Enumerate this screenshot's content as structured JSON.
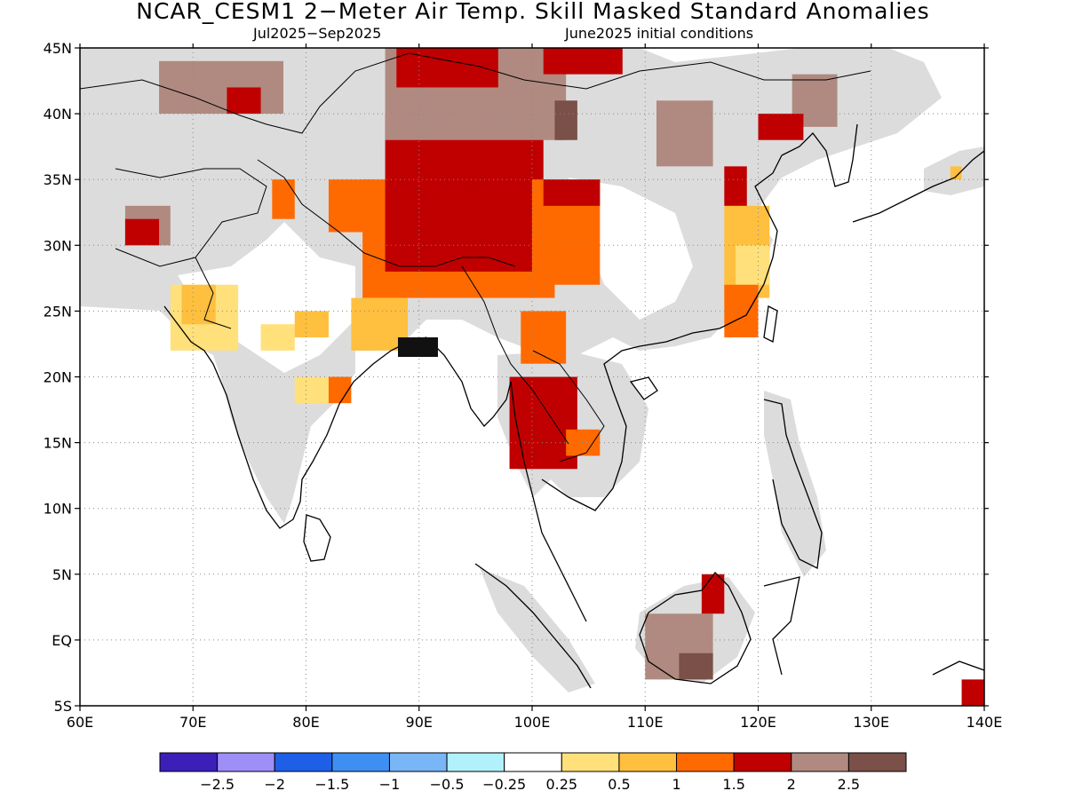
{
  "title": "NCAR_CESM1 2−Meter Air Temp. Skill Masked Standard Anomalies",
  "subtitle_left": "Jul2025−Sep2025",
  "subtitle_right": "June2025 initial conditions",
  "map": {
    "lon_range": [
      60,
      140
    ],
    "lat_range": [
      -5,
      45
    ],
    "lon_ticks": [
      {
        "v": 60,
        "label": "60E"
      },
      {
        "v": 70,
        "label": "70E"
      },
      {
        "v": 80,
        "label": "80E"
      },
      {
        "v": 90,
        "label": "90E"
      },
      {
        "v": 100,
        "label": "100E"
      },
      {
        "v": 110,
        "label": "110E"
      },
      {
        "v": 120,
        "label": "120E"
      },
      {
        "v": 130,
        "label": "130E"
      },
      {
        "v": 140,
        "label": "140E"
      }
    ],
    "lat_ticks": [
      {
        "v": 45,
        "label": "45N"
      },
      {
        "v": 40,
        "label": "40N"
      },
      {
        "v": 35,
        "label": "35N"
      },
      {
        "v": 30,
        "label": "30N"
      },
      {
        "v": 25,
        "label": "25N"
      },
      {
        "v": 20,
        "label": "20N"
      },
      {
        "v": 15,
        "label": "15N"
      },
      {
        "v": 10,
        "label": "10N"
      },
      {
        "v": 5,
        "label": "5N"
      },
      {
        "v": 0,
        "label": "EQ"
      },
      {
        "v": -5,
        "label": "5S"
      }
    ],
    "masked_color": "#dcdcdc",
    "anomaly_regions": [
      {
        "level": "1.5",
        "color": "#ff6a00",
        "lon": [
          85,
          102
        ],
        "lat": [
          26,
          35
        ]
      },
      {
        "level": "2",
        "color": "#c00000",
        "lon": [
          87,
          101
        ],
        "lat": [
          28,
          40
        ]
      },
      {
        "level": "2.5",
        "color": "#b08a80",
        "lon": [
          87,
          103
        ],
        "lat": [
          38,
          45
        ]
      },
      {
        "level": "2",
        "color": "#c00000",
        "lon": [
          88,
          97
        ],
        "lat": [
          42,
          45
        ]
      },
      {
        "level": "2",
        "color": "#c00000",
        "lon": [
          101,
          108
        ],
        "lat": [
          43,
          45
        ]
      },
      {
        "level": "1.5",
        "color": "#ff6a00",
        "lon": [
          100,
          106
        ],
        "lat": [
          27,
          35
        ]
      },
      {
        "level": "2",
        "color": "#c00000",
        "lon": [
          101,
          106
        ],
        "lat": [
          33,
          35
        ]
      },
      {
        "level": "2.5",
        "color": "#b08a80",
        "lon": [
          67,
          78
        ],
        "lat": [
          40,
          44
        ]
      },
      {
        "level": "2",
        "color": "#c00000",
        "lon": [
          73,
          76
        ],
        "lat": [
          40,
          42
        ]
      },
      {
        "level": "2.5",
        "color": "#b08a80",
        "lon": [
          64,
          68
        ],
        "lat": [
          30,
          33
        ]
      },
      {
        "level": "2",
        "color": "#c00000",
        "lon": [
          64,
          67
        ],
        "lat": [
          30,
          32
        ]
      },
      {
        "level": "1.5",
        "color": "#ff6a00",
        "lon": [
          77,
          79
        ],
        "lat": [
          32,
          35
        ]
      },
      {
        "level": "1.5",
        "color": "#ff6a00",
        "lon": [
          82,
          86
        ],
        "lat": [
          31,
          35
        ]
      },
      {
        "level": "0.5",
        "color": "#ffe07a",
        "lon": [
          68,
          74
        ],
        "lat": [
          22,
          27
        ]
      },
      {
        "level": "1",
        "color": "#ffbf3f",
        "lon": [
          69,
          72
        ],
        "lat": [
          24,
          27
        ]
      },
      {
        "level": "0.5",
        "color": "#ffe07a",
        "lon": [
          76,
          79
        ],
        "lat": [
          22,
          24
        ]
      },
      {
        "level": "1",
        "color": "#ffbf3f",
        "lon": [
          79,
          82
        ],
        "lat": [
          23,
          25
        ]
      },
      {
        "level": "1",
        "color": "#ffbf3f",
        "lon": [
          84,
          89
        ],
        "lat": [
          22,
          26
        ]
      },
      {
        "level": "0.5",
        "color": "#ffe07a",
        "lon": [
          79,
          83
        ],
        "lat": [
          18,
          20
        ]
      },
      {
        "level": "1.5",
        "color": "#ff6a00",
        "lon": [
          82,
          84
        ],
        "lat": [
          18,
          20
        ]
      },
      {
        "level": "2",
        "color": "#c00000",
        "lon": [
          98,
          104
        ],
        "lat": [
          13,
          20
        ]
      },
      {
        "level": "1.5",
        "color": "#ff6a00",
        "lon": [
          103,
          106
        ],
        "lat": [
          14,
          16
        ]
      },
      {
        "level": "1.5",
        "color": "#ff6a00",
        "lon": [
          99,
          103
        ],
        "lat": [
          21,
          25
        ]
      },
      {
        "level": "1",
        "color": "#ffbf3f",
        "lon": [
          117,
          121
        ],
        "lat": [
          26,
          33
        ]
      },
      {
        "level": "0.5",
        "color": "#ffe07a",
        "lon": [
          118,
          121
        ],
        "lat": [
          27,
          30
        ]
      },
      {
        "level": "1.5",
        "color": "#ff6a00",
        "lon": [
          117,
          120
        ],
        "lat": [
          23,
          27
        ]
      },
      {
        "level": "2",
        "color": "#c00000",
        "lon": [
          117,
          119
        ],
        "lat": [
          33,
          36
        ]
      },
      {
        "level": "2.5",
        "color": "#b08a80",
        "lon": [
          110,
          116
        ],
        "lat": [
          -3,
          2
        ]
      },
      {
        "level": "3",
        "color": "#7a5048",
        "lon": [
          113,
          116
        ],
        "lat": [
          -3,
          -1
        ]
      },
      {
        "level": "2",
        "color": "#c00000",
        "lon": [
          115,
          117
        ],
        "lat": [
          2,
          5
        ]
      },
      {
        "level": "2.5",
        "color": "#b08a80",
        "lon": [
          111,
          116
        ],
        "lat": [
          36,
          41
        ]
      },
      {
        "level": "2.5",
        "color": "#b08a80",
        "lon": [
          123,
          127
        ],
        "lat": [
          39,
          43
        ]
      },
      {
        "level": "2",
        "color": "#c00000",
        "lon": [
          120,
          124
        ],
        "lat": [
          38,
          40
        ]
      },
      {
        "level": "3",
        "color": "#7a5048",
        "lon": [
          102,
          104
        ],
        "lat": [
          38,
          41
        ]
      },
      {
        "level": "2",
        "color": "#c00000",
        "lon": [
          138,
          140
        ],
        "lat": [
          -5,
          -3
        ]
      },
      {
        "level": "1",
        "color": "#ffbf3f",
        "lon": [
          137,
          138
        ],
        "lat": [
          35,
          36
        ]
      }
    ]
  },
  "colorbar": {
    "colors": [
      "#3b1fb8",
      "#9d8ff7",
      "#1e5fe8",
      "#3f8ff2",
      "#79b6f5",
      "#b1f1fb",
      "#ffffff",
      "#ffe07a",
      "#ffbf3f",
      "#ff6a00",
      "#c00000",
      "#b08a80",
      "#7a5048"
    ],
    "labels": [
      "−2.5",
      "−2",
      "−1.5",
      "−1",
      "−0.5",
      "−0.25",
      "0.25",
      "0.5",
      "1",
      "1.5",
      "2",
      "2.5"
    ]
  }
}
